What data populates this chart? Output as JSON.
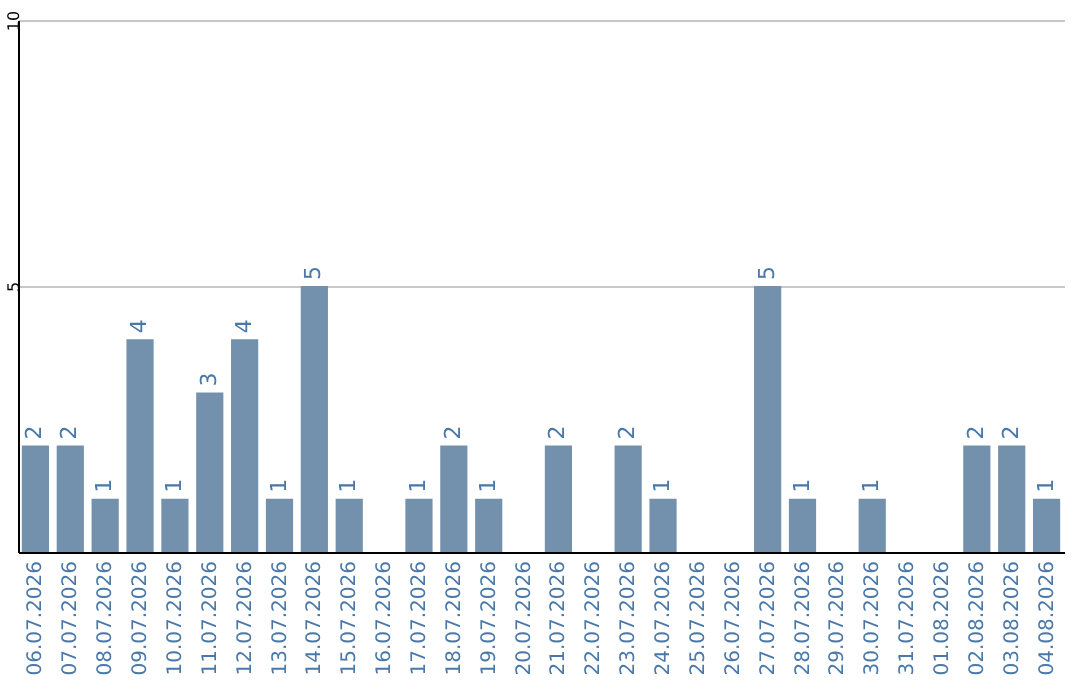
{
  "chart_data": {
    "type": "bar",
    "categories": [
      "06.07.2026",
      "07.07.2026",
      "08.07.2026",
      "09.07.2026",
      "10.07.2026",
      "11.07.2026",
      "12.07.2026",
      "13.07.2026",
      "14.07.2026",
      "15.07.2026",
      "16.07.2026",
      "17.07.2026",
      "18.07.2026",
      "19.07.2026",
      "20.07.2026",
      "21.07.2026",
      "22.07.2026",
      "23.07.2026",
      "24.07.2026",
      "25.07.2026",
      "26.07.2026",
      "27.07.2026",
      "28.07.2026",
      "29.07.2026",
      "30.07.2026",
      "31.07.2026",
      "01.08.2026",
      "02.08.2026",
      "03.08.2026",
      "04.08.2026"
    ],
    "values": [
      2,
      2,
      1,
      4,
      1,
      3,
      4,
      1,
      5,
      1,
      0,
      1,
      2,
      1,
      0,
      2,
      0,
      2,
      1,
      0,
      0,
      5,
      1,
      0,
      1,
      0,
      0,
      2,
      2,
      1
    ],
    "value_labels": [
      "2",
      "2",
      "1",
      "4",
      "1",
      "3",
      "4",
      "1",
      "5",
      "1",
      null,
      "1",
      "2",
      "1",
      null,
      "2",
      null,
      "2",
      "1",
      null,
      null,
      "5",
      "1",
      null,
      "1",
      null,
      null,
      "2",
      "2",
      "1"
    ],
    "color": "#7391ad",
    "ylim": [
      0,
      10
    ],
    "yticks": [
      {
        "value": 0,
        "label": null
      },
      5,
      10
    ],
    "grid": "y"
  }
}
